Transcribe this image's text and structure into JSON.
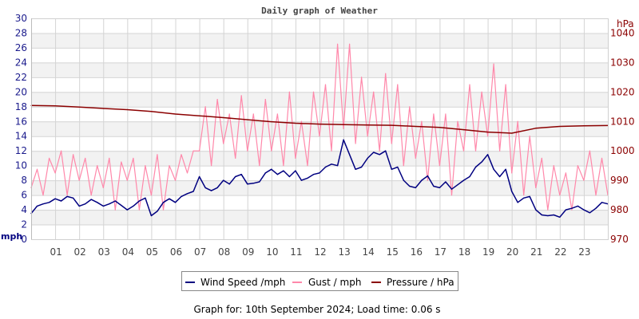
{
  "chart_data": {
    "type": "line",
    "title": "Daily graph of Weather",
    "footer": "Graph for: 10th September 2024; Load time: 0.06 s",
    "x_ticks": [
      "01",
      "02",
      "03",
      "04",
      "05",
      "06",
      "07",
      "08",
      "09",
      "10",
      "11",
      "12",
      "13",
      "14",
      "15",
      "16",
      "17",
      "18",
      "19",
      "20",
      "21",
      "22",
      "23"
    ],
    "xlim_hours": [
      0,
      24
    ],
    "y_left": {
      "label": "mph",
      "lim": [
        0,
        30
      ],
      "ticks": [
        "0",
        "2",
        "4",
        "6",
        "8",
        "10",
        "12",
        "14",
        "16",
        "18",
        "20",
        "22",
        "24",
        "26",
        "28",
        "30"
      ]
    },
    "y_right": {
      "label": "hPa",
      "lim": [
        970,
        1045
      ],
      "ticks": [
        "970",
        "980",
        "990",
        "1000",
        "1010",
        "1020",
        "1030",
        "1040"
      ]
    },
    "grid": true,
    "legend_position": "bottom",
    "series": [
      {
        "name": "Wind Speed /mph",
        "axis": "left",
        "color": "#000080",
        "x_step_hours": 0.25,
        "values": [
          3.5,
          4.5,
          4.8,
          5.0,
          5.5,
          5.2,
          5.8,
          5.6,
          4.5,
          4.8,
          5.4,
          5.0,
          4.5,
          4.8,
          5.2,
          4.6,
          4.0,
          4.5,
          5.2,
          5.6,
          3.2,
          3.8,
          5.0,
          5.5,
          5.0,
          5.8,
          6.2,
          6.5,
          8.5,
          7.0,
          6.6,
          7.0,
          8.0,
          7.5,
          8.5,
          8.8,
          7.5,
          7.6,
          7.8,
          9.0,
          9.5,
          8.8,
          9.3,
          8.5,
          9.3,
          8.0,
          8.3,
          8.8,
          9.0,
          9.8,
          10.2,
          10.0,
          13.5,
          11.5,
          9.5,
          9.8,
          11.0,
          11.8,
          11.5,
          12.0,
          9.5,
          9.8,
          8.0,
          7.2,
          7.0,
          8.0,
          8.6,
          7.2,
          7.0,
          7.8,
          6.8,
          7.4,
          8.0,
          8.5,
          9.8,
          10.5,
          11.5,
          9.5,
          8.5,
          9.5,
          6.5,
          5.0,
          5.6,
          5.8,
          4.0,
          3.3,
          3.2,
          3.3,
          3.0,
          4.0,
          4.2,
          4.5,
          4.0,
          3.6,
          4.2,
          5.0,
          4.8
        ]
      },
      {
        "name": "Gust / mph",
        "axis": "left",
        "color": "#ff88aa",
        "x_step_hours": 0.25,
        "values": [
          7,
          9.5,
          6,
          11,
          9,
          12,
          6,
          11.5,
          8,
          11,
          6,
          10,
          7,
          11,
          4,
          10.5,
          8,
          11,
          4,
          10,
          6,
          11.5,
          4,
          10,
          8,
          11.5,
          9,
          12,
          12,
          18,
          10,
          19,
          13,
          17,
          11,
          19.5,
          12,
          17,
          10,
          19,
          12,
          17,
          10,
          20,
          11,
          16,
          10,
          20,
          14,
          21,
          12,
          26.5,
          15,
          26.5,
          13,
          22,
          14,
          20,
          12,
          22.5,
          13,
          21,
          10,
          18,
          11,
          16,
          8,
          17,
          10,
          17,
          6,
          16,
          12,
          21,
          12,
          20,
          14,
          23.8,
          12,
          21,
          9,
          16,
          6,
          14,
          7,
          11,
          4,
          10,
          6,
          9,
          4,
          10,
          8,
          12,
          6,
          11,
          6
        ]
      },
      {
        "name": "Pressure / hPa",
        "axis": "right",
        "color": "#8b0000",
        "x_step_hours": 1,
        "values": [
          1015.4,
          1015.3,
          1014.9,
          1014.4,
          1014.0,
          1013.4,
          1012.5,
          1011.9,
          1011.3,
          1010.6,
          1009.9,
          1009.4,
          1009.1,
          1008.9,
          1008.8,
          1008.7,
          1008.3,
          1008.0,
          1007.2,
          1006.4,
          1006.0,
          1007.7,
          1008.3,
          1008.5,
          1008.6
        ]
      }
    ]
  }
}
